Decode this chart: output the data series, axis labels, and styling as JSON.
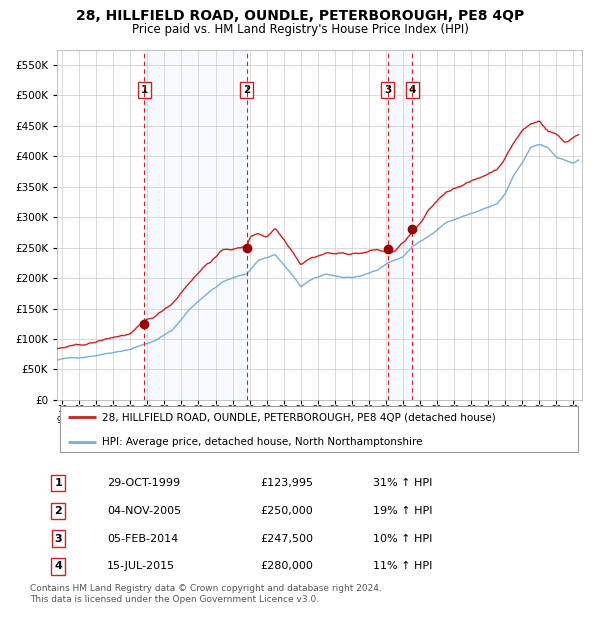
{
  "title": "28, HILLFIELD ROAD, OUNDLE, PETERBOROUGH, PE8 4QP",
  "subtitle": "Price paid vs. HM Land Registry's House Price Index (HPI)",
  "legend_line1": "28, HILLFIELD ROAD, OUNDLE, PETERBOROUGH, PE8 4QP (detached house)",
  "legend_line2": "HPI: Average price, detached house, North Northamptonshire",
  "footer1": "Contains HM Land Registry data © Crown copyright and database right 2024.",
  "footer2": "This data is licensed under the Open Government Licence v3.0.",
  "sale_points": [
    {
      "label": "1",
      "date": "29-OCT-1999",
      "price": 123995,
      "pct": "31%",
      "dir": "↑",
      "x_year": 1999.83
    },
    {
      "label": "2",
      "date": "04-NOV-2005",
      "price": 250000,
      "pct": "19%",
      "dir": "↑",
      "x_year": 2005.84
    },
    {
      "label": "3",
      "date": "05-FEB-2014",
      "price": 247500,
      "pct": "10%",
      "dir": "↑",
      "x_year": 2014.1
    },
    {
      "label": "4",
      "date": "15-JUL-2015",
      "price": 280000,
      "pct": "11%",
      "dir": "↑",
      "x_year": 2015.54
    }
  ],
  "ylim": [
    0,
    575000
  ],
  "xlim_start": 1994.7,
  "xlim_end": 2025.5,
  "hpi_color": "#7aaed6",
  "price_color": "#cc2222",
  "dot_color": "#990000",
  "vline_color": "#cc2222",
  "shade_color": "#ddeeff",
  "background_color": "#ffffff",
  "grid_color": "#cccccc",
  "title_fontsize": 10,
  "subtitle_fontsize": 8.5,
  "axis_fontsize": 7,
  "legend_fontsize": 7.5,
  "footer_fontsize": 6.5
}
